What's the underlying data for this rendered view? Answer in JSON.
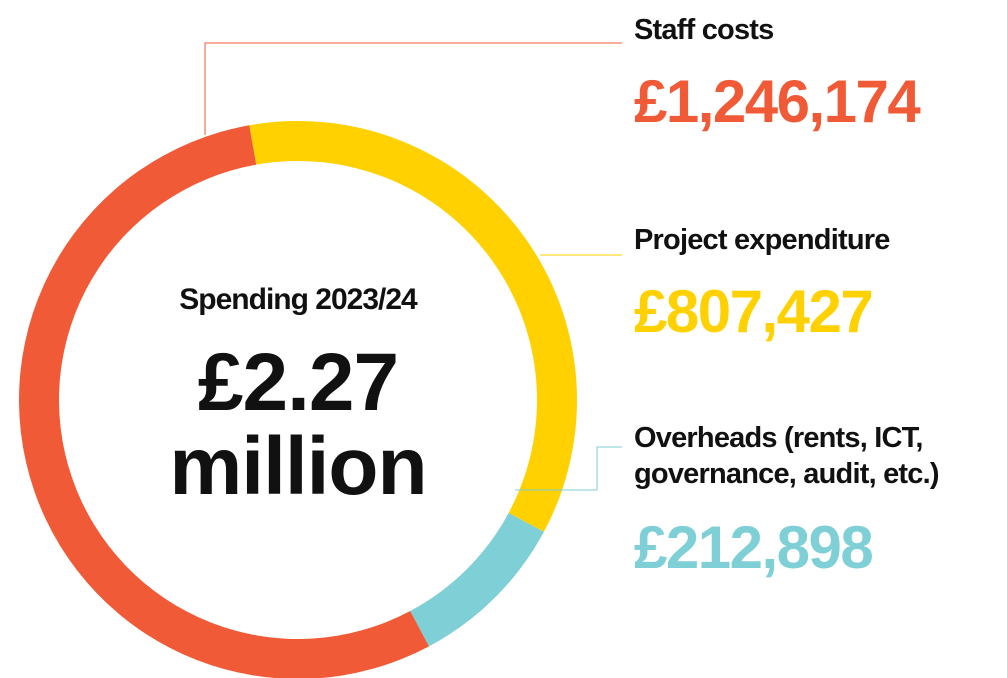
{
  "chart_data": {
    "type": "donut",
    "center_title": "Spending 2023/24",
    "center_value": [
      "£2.27",
      "million"
    ],
    "categories": [
      "Staff costs",
      "Project expenditure",
      "Overheads (rents, ICT, governance, audit, etc.)"
    ],
    "values": [
      1246174,
      807427,
      212898
    ],
    "value_labels": [
      "£1,246,174",
      "£807,427",
      "£212,898"
    ],
    "colors": [
      "#f15a36",
      "#ffd100",
      "#7fcfd6"
    ]
  }
}
